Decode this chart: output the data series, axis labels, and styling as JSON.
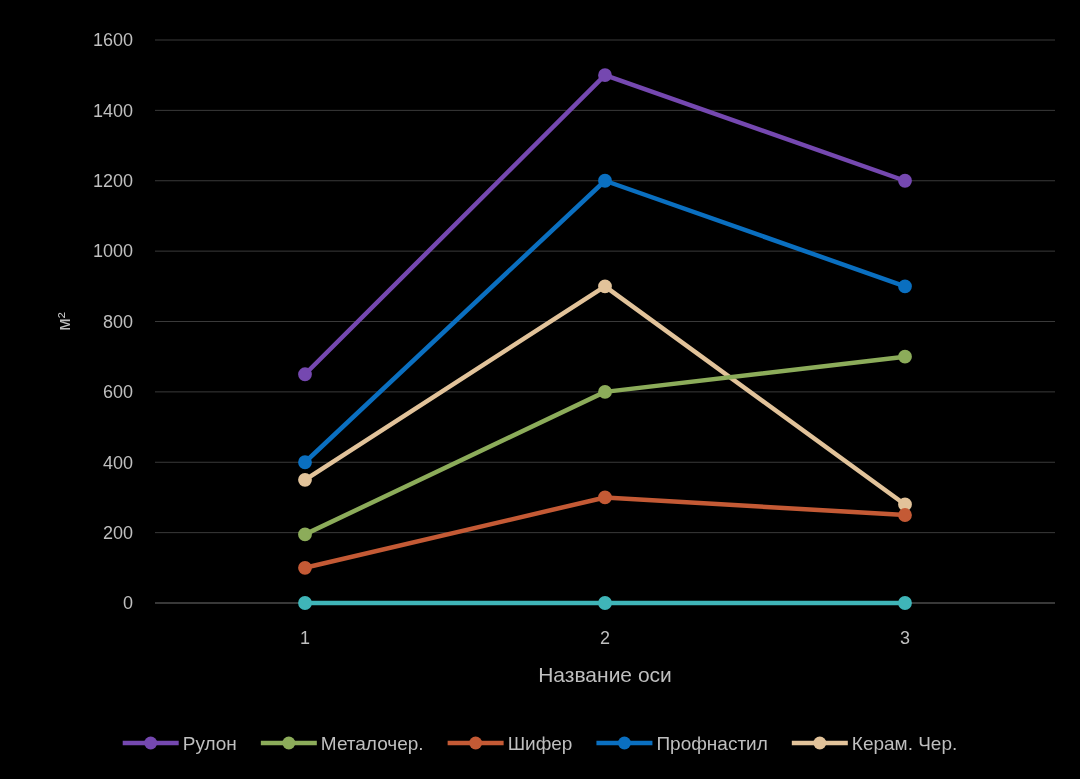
{
  "chart_data": {
    "type": "line",
    "xlabel": "Название оси",
    "ylabel": "м²",
    "categories": [
      "1",
      "2",
      "3"
    ],
    "ylim": [
      0,
      1600
    ],
    "yticks": [
      0,
      200,
      400,
      600,
      800,
      1000,
      1200,
      1400,
      1600
    ],
    "grid": "y",
    "legend": "bottom",
    "marker": "circle",
    "line_style": "solid",
    "series": [
      {
        "name": "Рулон",
        "color": "#7548b0",
        "values": [
          650,
          1500,
          1200
        ]
      },
      {
        "name": "Металочер.",
        "color": "#8cac5a",
        "values": [
          195,
          600,
          700
        ]
      },
      {
        "name": "Шифер",
        "color": "#c45a35",
        "values": [
          100,
          300,
          250
        ]
      },
      {
        "name": "Профнастил",
        "color": "#0a6fc0",
        "values": [
          400,
          1200,
          900
        ]
      },
      {
        "name": "Керам. Чер.",
        "color": "#e2c39a",
        "values": [
          350,
          900,
          280
        ]
      },
      {
        "color": "#3fb5b8",
        "values": [
          0,
          0,
          0
        ]
      }
    ]
  }
}
